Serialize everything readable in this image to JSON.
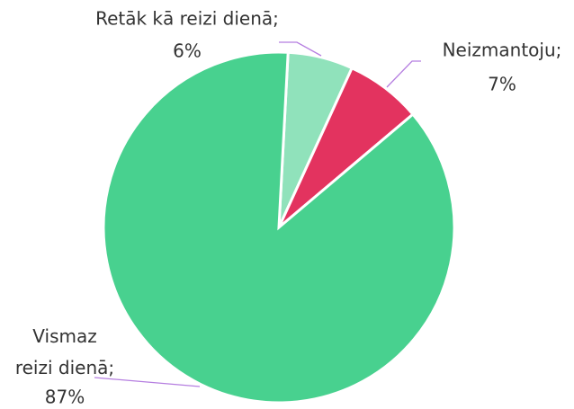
{
  "chart_data": {
    "type": "pie",
    "categories": [
      "Retāk kā reizi dienā;",
      "Neizmantoju;",
      "Vismaz reizi dienā;"
    ],
    "values": [
      6,
      7,
      87
    ],
    "value_labels": [
      "6%",
      "7%",
      "87%"
    ],
    "colors": [
      "#90e2bb",
      "#e3335f",
      "#48d18f"
    ]
  }
}
